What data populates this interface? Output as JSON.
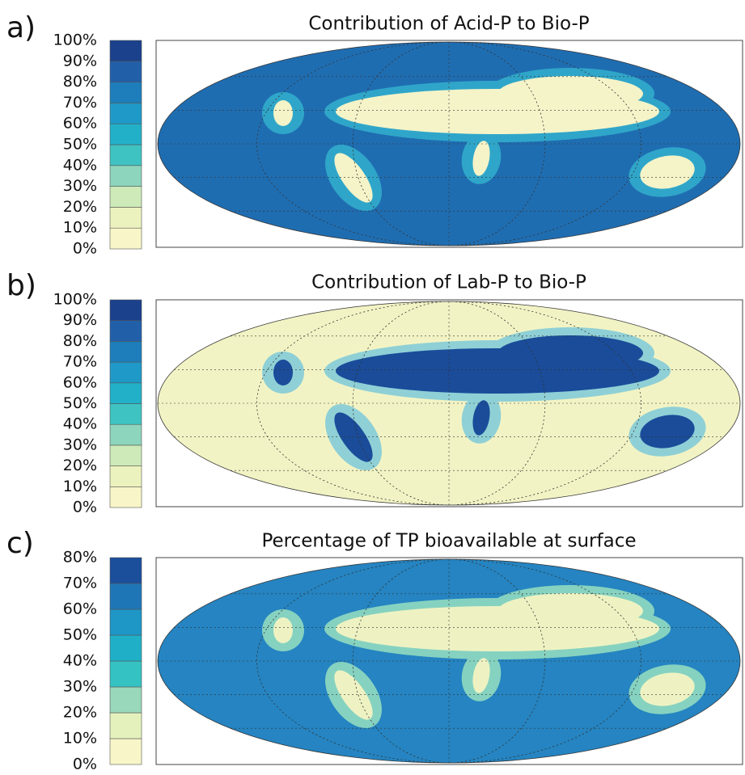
{
  "panels": [
    {
      "label": "a)",
      "title": "Contribution of Acid-P to Bio-P",
      "colorbar": {
        "ticks": [
          {
            "value": 0,
            "label": "0%"
          },
          {
            "value": 10,
            "label": "10%"
          },
          {
            "value": 20,
            "label": "20%"
          },
          {
            "value": 30,
            "label": "30%"
          },
          {
            "value": 40,
            "label": "40%"
          },
          {
            "value": 50,
            "label": "50%"
          },
          {
            "value": 60,
            "label": "60%"
          },
          {
            "value": 70,
            "label": "70%"
          },
          {
            "value": 80,
            "label": "80%"
          },
          {
            "value": 90,
            "label": "90%"
          },
          {
            "value": 100,
            "label": "100%"
          }
        ],
        "colors": [
          "#f8f6c8",
          "#ecf2bd",
          "#cdeab8",
          "#8dd5bc",
          "#3fc3c2",
          "#22b0c8",
          "#1f99c7",
          "#1d7ebb",
          "#2160a9",
          "#1b418d"
        ]
      }
    },
    {
      "label": "b)",
      "title": "Contribution of Lab-P to Bio-P",
      "colorbar": {
        "ticks": [
          {
            "value": 0,
            "label": "0%"
          },
          {
            "value": 10,
            "label": "10%"
          },
          {
            "value": 20,
            "label": "20%"
          },
          {
            "value": 30,
            "label": "30%"
          },
          {
            "value": 40,
            "label": "40%"
          },
          {
            "value": 50,
            "label": "50%"
          },
          {
            "value": 60,
            "label": "60%"
          },
          {
            "value": 70,
            "label": "70%"
          },
          {
            "value": 80,
            "label": "80%"
          },
          {
            "value": 90,
            "label": "90%"
          },
          {
            "value": 100,
            "label": "100%"
          }
        ],
        "colors": [
          "#f8f6c8",
          "#ecf2bd",
          "#cdeab8",
          "#8dd5bc",
          "#3fc3c2",
          "#22b0c8",
          "#1f99c7",
          "#1d7ebb",
          "#2160a9",
          "#1b418d"
        ]
      }
    },
    {
      "label": "c)",
      "title": "Percentage of TP bioavailable at surface",
      "colorbar": {
        "ticks": [
          {
            "value": 0,
            "label": "0%"
          },
          {
            "value": 10,
            "label": "10%"
          },
          {
            "value": 20,
            "label": "20%"
          },
          {
            "value": 30,
            "label": "30%"
          },
          {
            "value": 40,
            "label": "40%"
          },
          {
            "value": 50,
            "label": "50%"
          },
          {
            "value": 60,
            "label": "60%"
          },
          {
            "value": 70,
            "label": "70%"
          },
          {
            "value": 80,
            "label": "80%"
          }
        ],
        "colors": [
          "#f8f6c8",
          "#e4f1bc",
          "#9ad8bb",
          "#35c2c3",
          "#1fb0c8",
          "#1e96c6",
          "#1f76b6",
          "#1b4f9c"
        ]
      }
    }
  ]
}
